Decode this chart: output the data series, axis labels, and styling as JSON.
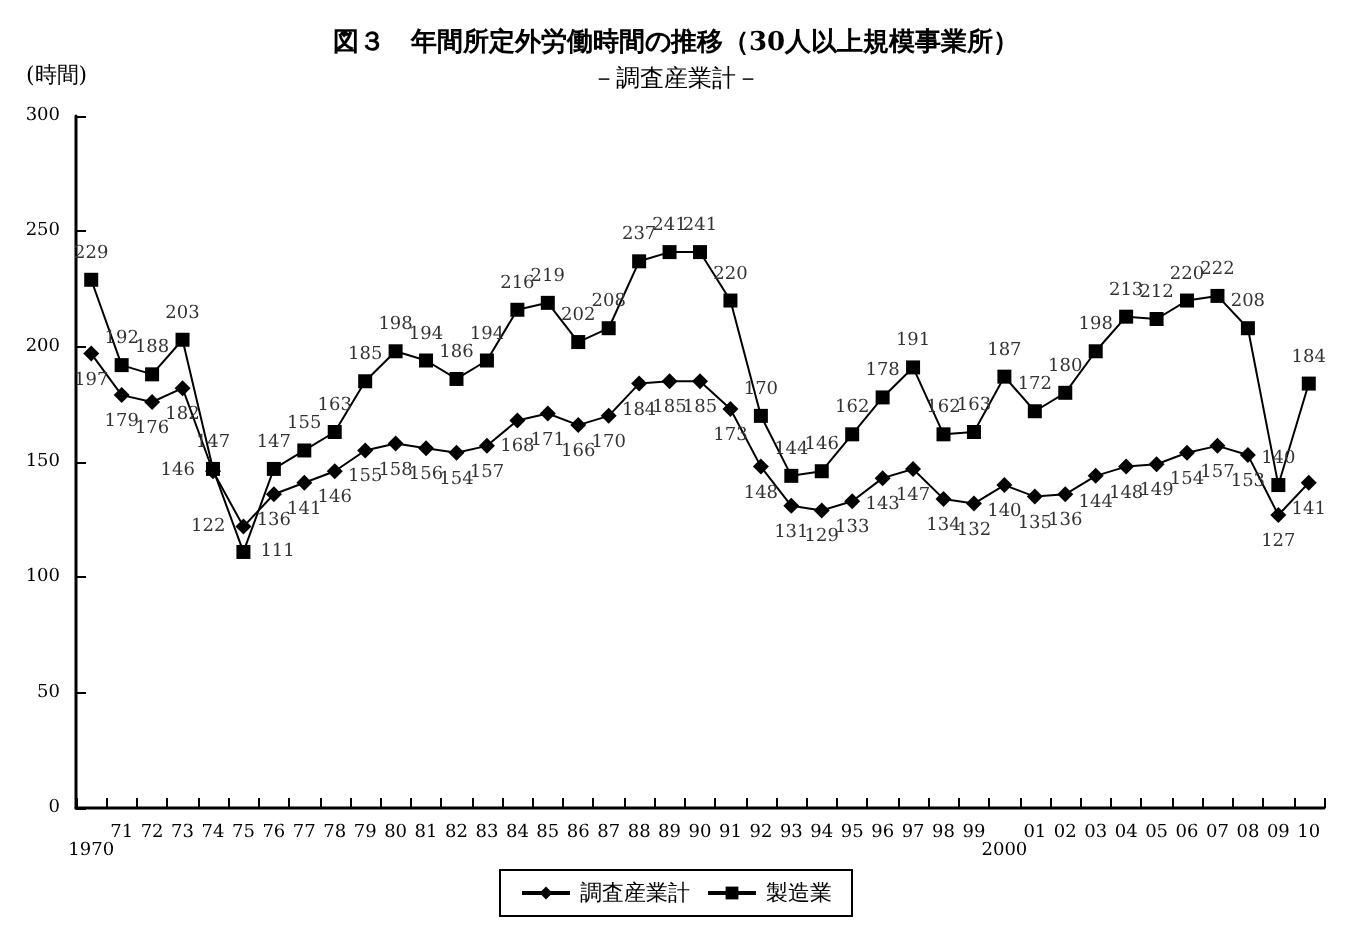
{
  "chart_data": {
    "type": "line",
    "title": "図３　年間所定外労働時間の推移（30人以上規模事業所）",
    "subtitle": "－調査産業計－",
    "ylabel": "(時間)",
    "categories": [
      "1970",
      "71",
      "72",
      "73",
      "74",
      "75",
      "76",
      "77",
      "78",
      "79",
      "80",
      "81",
      "82",
      "83",
      "84",
      "85",
      "86",
      "87",
      "88",
      "89",
      "90",
      "91",
      "92",
      "93",
      "94",
      "95",
      "96",
      "97",
      "98",
      "99",
      "2000",
      "01",
      "02",
      "03",
      "04",
      "05",
      "06",
      "07",
      "08",
      "09",
      "10"
    ],
    "series": [
      {
        "name": "調査産業計",
        "color": "#000000",
        "marker": "diamond",
        "values": [
          197,
          179,
          176,
          182,
          146,
          122,
          136,
          141,
          146,
          155,
          158,
          156,
          154,
          157,
          168,
          171,
          166,
          170,
          184,
          185,
          185,
          173,
          148,
          131,
          129,
          133,
          143,
          147,
          134,
          132,
          140,
          135,
          136,
          144,
          148,
          149,
          154,
          157,
          153,
          127,
          141
        ]
      },
      {
        "name": "製造業",
        "color": "#000000",
        "marker": "square",
        "values": [
          229,
          192,
          188,
          203,
          147,
          111,
          147,
          155,
          163,
          185,
          198,
          194,
          186,
          194,
          216,
          219,
          202,
          208,
          237,
          241,
          241,
          220,
          170,
          144,
          146,
          162,
          178,
          191,
          162,
          163,
          187,
          172,
          180,
          198,
          213,
          212,
          220,
          222,
          208,
          140,
          184
        ]
      }
    ],
    "ylim": [
      0,
      300
    ],
    "yticks": [
      0,
      50,
      100,
      150,
      200,
      250,
      300
    ],
    "grid": false,
    "legend": "bottom",
    "data_labels": true,
    "line_style": "solid"
  }
}
